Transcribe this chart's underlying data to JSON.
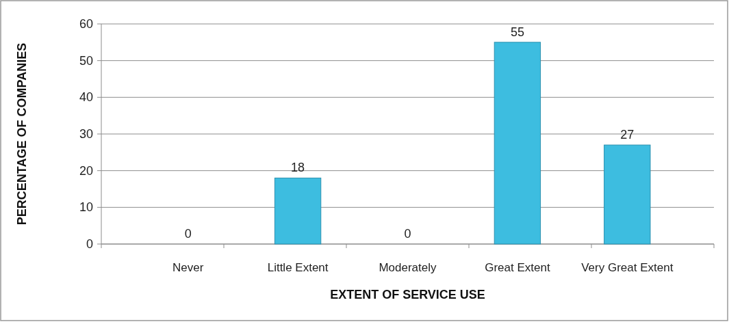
{
  "chart_data": {
    "type": "bar",
    "xlabel": "EXTENT OF SERVICE USE",
    "ylabel": "PERCENTAGE OF COMPANIES",
    "categories": [
      "Never",
      "Little Extent",
      "Moderately",
      "Great Extent",
      "Very Great Extent"
    ],
    "values": [
      0,
      18,
      0,
      55,
      27
    ],
    "color": "#3dbde0",
    "ylim": [
      0,
      60
    ],
    "yticks": [
      0,
      10,
      20,
      30,
      40,
      50,
      60
    ],
    "grid": "y",
    "data_labels": true
  }
}
